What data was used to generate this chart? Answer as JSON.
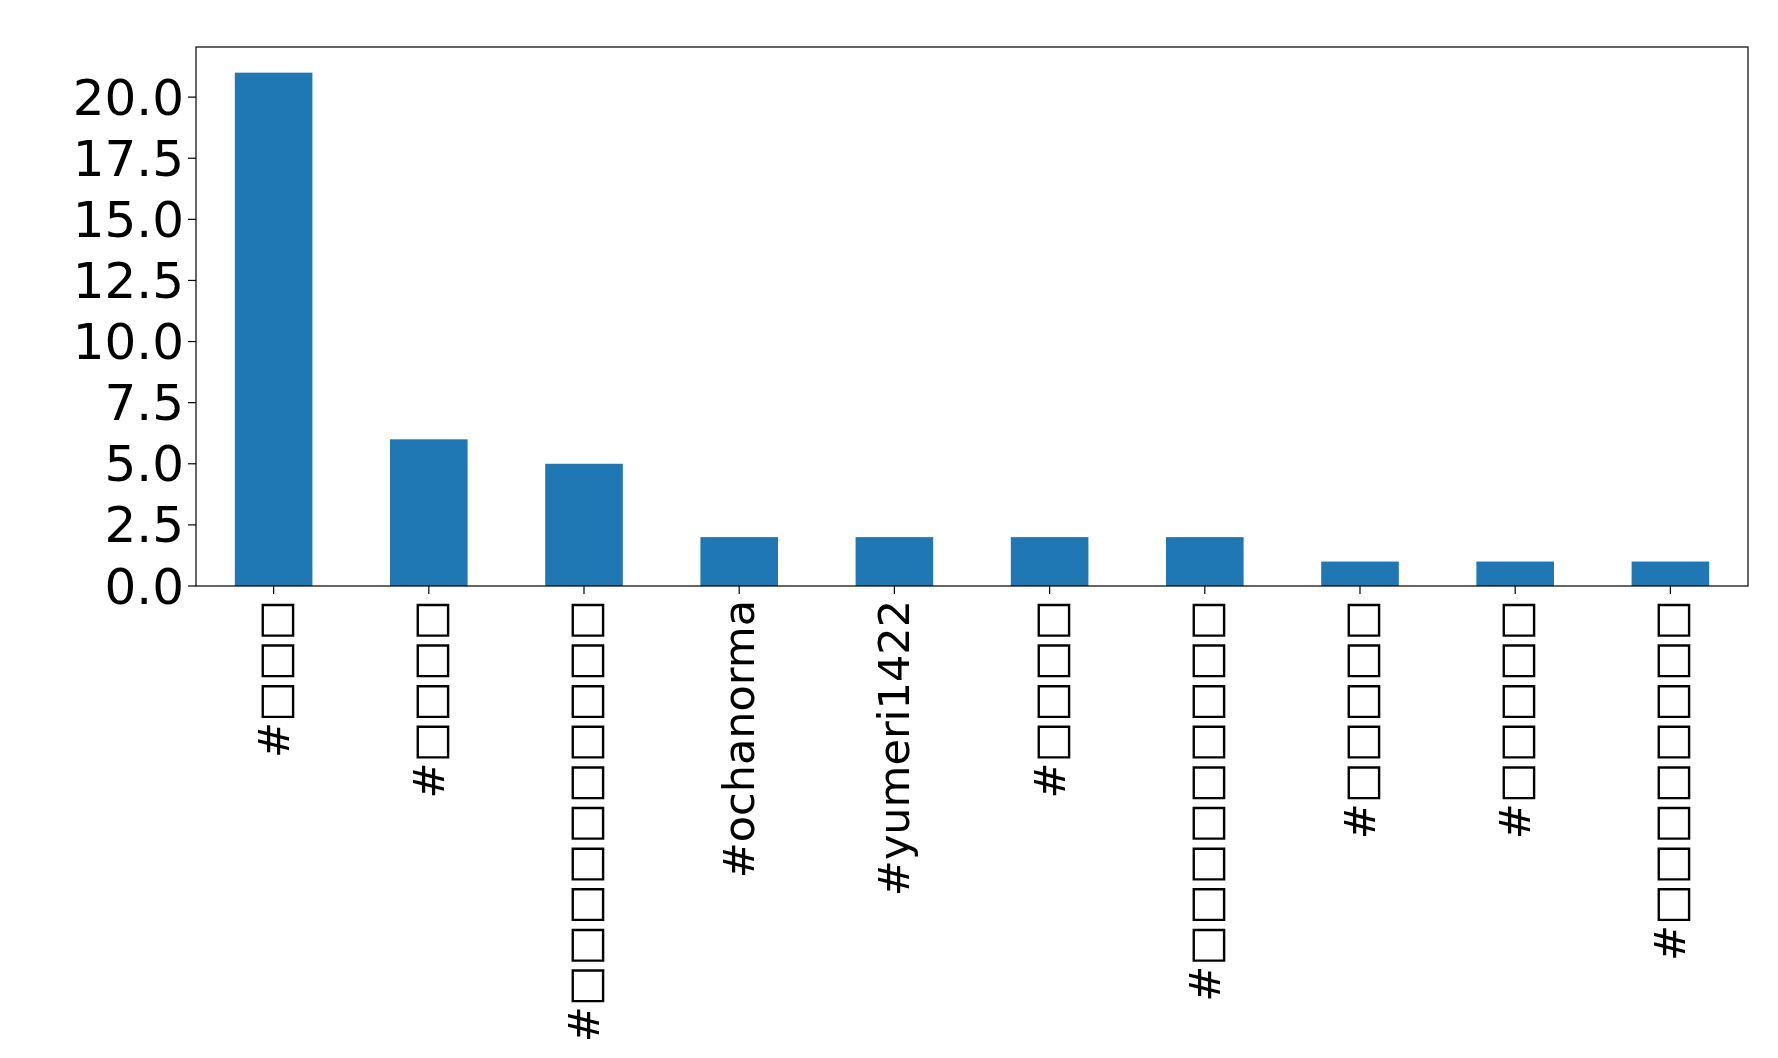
{
  "chart_data": {
    "type": "bar",
    "categories": [
      "#□□□",
      "#□□□□",
      "#□□□□□□□□□□",
      "#ochanorma",
      "#yumeri1422",
      "#□□□□",
      "#□□□□□□□□□",
      "#□□□□□",
      "#□□□□□",
      "#□□□□□□□□"
    ],
    "values": [
      21,
      6,
      5,
      2,
      2,
      2,
      2,
      1,
      1,
      1
    ],
    "color": "#1f77b4",
    "ylim": [
      0,
      22.05
    ],
    "yticks": [
      {
        "value": 0,
        "label": "0.0"
      },
      {
        "value": 2.5,
        "label": "2.5"
      },
      {
        "value": 5,
        "label": "5.0"
      },
      {
        "value": 7.5,
        "label": "7.5"
      },
      {
        "value": 10,
        "label": "10.0"
      },
      {
        "value": 12.5,
        "label": "12.5"
      },
      {
        "value": 15,
        "label": "15.0"
      },
      {
        "value": 17.5,
        "label": "17.5"
      },
      {
        "value": 20,
        "label": "20.0"
      }
    ],
    "grid": false
  }
}
